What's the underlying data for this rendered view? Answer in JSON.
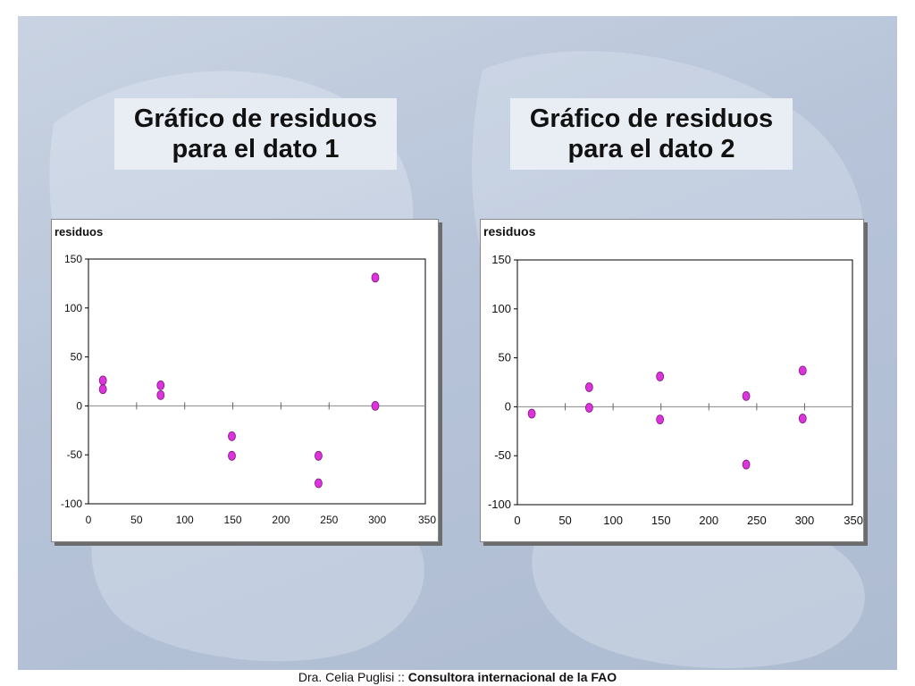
{
  "titles": [
    {
      "line1": "Gráfico de residuos",
      "line2": "para el dato 1"
    },
    {
      "line1": "Gráfico de residuos",
      "line2": "para el dato 2"
    }
  ],
  "footer": {
    "author": "Dra. Celia Puglisi",
    "separator": " :: ",
    "role": "Consultora internacional de la FAO"
  },
  "colors": {
    "point_fill": "#dd33dd",
    "point_stroke": "#7a1a7a"
  },
  "chart_data": [
    {
      "type": "scatter",
      "title": "",
      "ylabel": "residuos",
      "xlabel": "",
      "xlim": [
        0,
        350
      ],
      "ylim": [
        -100,
        150
      ],
      "xticks": [
        0,
        50,
        100,
        150,
        200,
        250,
        300,
        350
      ],
      "yticks": [
        150,
        100,
        50,
        0,
        -50,
        -100
      ],
      "grid": false,
      "points": [
        {
          "x": 15,
          "y": 26
        },
        {
          "x": 15,
          "y": 17
        },
        {
          "x": 75,
          "y": 21
        },
        {
          "x": 75,
          "y": 11
        },
        {
          "x": 149,
          "y": -31
        },
        {
          "x": 149,
          "y": -51
        },
        {
          "x": 239,
          "y": -51
        },
        {
          "x": 239,
          "y": -79
        },
        {
          "x": 298,
          "y": 131
        },
        {
          "x": 298,
          "y": 0
        }
      ]
    },
    {
      "type": "scatter",
      "title": "",
      "ylabel": "residuos",
      "xlabel": "",
      "xlim": [
        0,
        350
      ],
      "ylim": [
        -100,
        150
      ],
      "xticks": [
        0,
        50,
        100,
        150,
        200,
        250,
        300,
        350
      ],
      "yticks": [
        150,
        100,
        50,
        0,
        -50,
        -100
      ],
      "grid": false,
      "points": [
        {
          "x": 15,
          "y": -7
        },
        {
          "x": 75,
          "y": 20
        },
        {
          "x": 75,
          "y": -1
        },
        {
          "x": 149,
          "y": 31
        },
        {
          "x": 149,
          "y": -13
        },
        {
          "x": 239,
          "y": 11
        },
        {
          "x": 239,
          "y": -59
        },
        {
          "x": 298,
          "y": 37
        },
        {
          "x": 298,
          "y": -12
        }
      ]
    }
  ]
}
